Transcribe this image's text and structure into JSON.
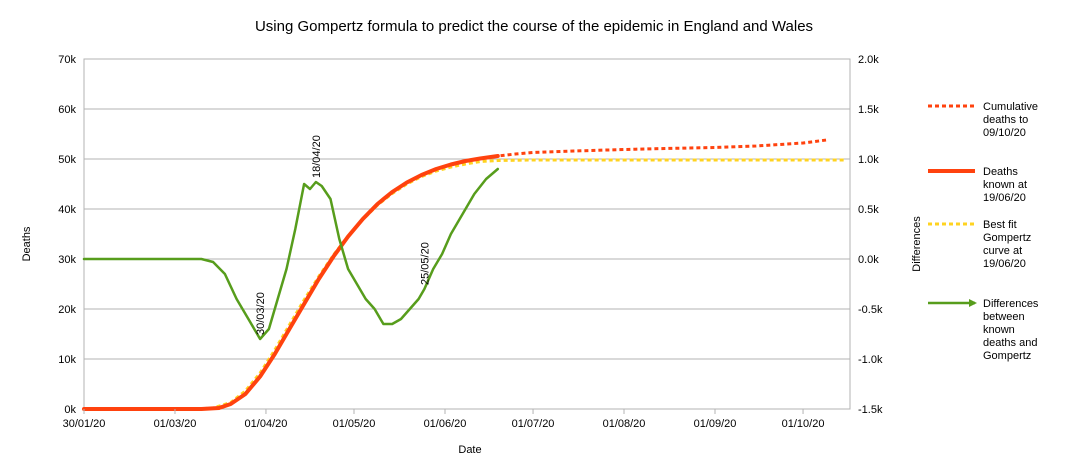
{
  "chart_data": {
    "type": "line",
    "title": "Using Gompertz formula to predict the course of the epidemic in England and Wales",
    "xlabel": "Date",
    "ylabel": "Deaths",
    "y2label": "Differences",
    "x_ticks": [
      "30/01/20",
      "01/03/20",
      "01/04/20",
      "01/05/20",
      "01/06/20",
      "01/07/20",
      "01/08/20",
      "01/09/20",
      "01/10/20"
    ],
    "x_range": [
      "2020-01-30",
      "2020-10-17"
    ],
    "ylim": [
      0,
      70000
    ],
    "y_ticks": [
      "0k",
      "10k",
      "20k",
      "30k",
      "40k",
      "50k",
      "60k",
      "70k"
    ],
    "y2lim": [
      -1500,
      2000
    ],
    "y2_ticks": [
      "-1.5k",
      "-1.0k",
      "-0.5k",
      "0.0k",
      "0.5k",
      "1.0k",
      "1.5k",
      "2.0k"
    ],
    "grid": "horizontal",
    "legend_position": "right",
    "series": [
      {
        "name": "Cumulative deaths to 09/10/20",
        "axis": "left",
        "color": "#ff420e",
        "style": "dotted",
        "x": [
          "2020-01-30",
          "2020-03-10",
          "2020-03-16",
          "2020-03-20",
          "2020-03-25",
          "2020-03-30",
          "2020-04-04",
          "2020-04-09",
          "2020-04-14",
          "2020-04-19",
          "2020-04-24",
          "2020-04-29",
          "2020-05-04",
          "2020-05-09",
          "2020-05-14",
          "2020-05-19",
          "2020-05-24",
          "2020-05-29",
          "2020-06-03",
          "2020-06-08",
          "2020-06-13",
          "2020-06-19",
          "2020-06-25",
          "2020-07-01",
          "2020-07-15",
          "2020-08-01",
          "2020-08-15",
          "2020-09-01",
          "2020-09-15",
          "2020-10-01",
          "2020-10-09"
        ],
        "y": [
          0,
          0,
          200,
          1000,
          3000,
          6500,
          11000,
          16000,
          21000,
          26000,
          30500,
          34500,
          38000,
          41000,
          43400,
          45300,
          46800,
          48000,
          48900,
          49600,
          50100,
          50600,
          51000,
          51300,
          51600,
          51900,
          52100,
          52300,
          52600,
          53200,
          53800
        ]
      },
      {
        "name": "Deaths known at 19/06/20",
        "axis": "left",
        "color": "#ff420e",
        "style": "solid",
        "x": [
          "2020-01-30",
          "2020-03-10",
          "2020-03-16",
          "2020-03-20",
          "2020-03-25",
          "2020-03-30",
          "2020-04-04",
          "2020-04-09",
          "2020-04-14",
          "2020-04-19",
          "2020-04-24",
          "2020-04-29",
          "2020-05-04",
          "2020-05-09",
          "2020-05-14",
          "2020-05-19",
          "2020-05-24",
          "2020-05-29",
          "2020-06-03",
          "2020-06-08",
          "2020-06-13",
          "2020-06-19"
        ],
        "y": [
          0,
          0,
          200,
          1000,
          3000,
          6500,
          11000,
          16000,
          21000,
          26000,
          30500,
          34500,
          38000,
          41000,
          43400,
          45300,
          46800,
          48000,
          48900,
          49600,
          50100,
          50600
        ]
      },
      {
        "name": "Best fit Gompertz curve at 19/06/20",
        "axis": "left",
        "color": "#ffd320",
        "style": "dotted",
        "x": [
          "2020-01-30",
          "2020-03-08",
          "2020-03-14",
          "2020-03-20",
          "2020-03-25",
          "2020-03-30",
          "2020-04-04",
          "2020-04-09",
          "2020-04-14",
          "2020-04-19",
          "2020-04-24",
          "2020-04-29",
          "2020-05-04",
          "2020-05-09",
          "2020-05-14",
          "2020-05-19",
          "2020-05-24",
          "2020-05-29",
          "2020-06-03",
          "2020-06-08",
          "2020-06-13",
          "2020-06-19",
          "2020-07-01",
          "2020-08-01",
          "2020-09-01",
          "2020-10-01",
          "2020-10-15"
        ],
        "y": [
          0,
          0,
          200,
          1300,
          3600,
          7200,
          11800,
          16800,
          21800,
          26500,
          30800,
          34600,
          37900,
          40800,
          43100,
          45000,
          46500,
          47600,
          48400,
          49000,
          49500,
          49700,
          49800,
          49800,
          49800,
          49800,
          49800
        ]
      },
      {
        "name": "Differences between known deaths and Gompertz",
        "axis": "right",
        "color": "#579d1c",
        "style": "solid",
        "x": [
          "2020-01-30",
          "2020-03-10",
          "2020-03-14",
          "2020-03-18",
          "2020-03-22",
          "2020-03-26",
          "2020-03-30",
          "2020-04-02",
          "2020-04-05",
          "2020-04-08",
          "2020-04-11",
          "2020-04-14",
          "2020-04-16",
          "2020-04-18",
          "2020-04-20",
          "2020-04-23",
          "2020-04-26",
          "2020-04-29",
          "2020-05-02",
          "2020-05-05",
          "2020-05-08",
          "2020-05-11",
          "2020-05-14",
          "2020-05-17",
          "2020-05-20",
          "2020-05-23",
          "2020-05-25",
          "2020-05-28",
          "2020-05-31",
          "2020-06-03",
          "2020-06-07",
          "2020-06-11",
          "2020-06-15",
          "2020-06-19"
        ],
        "y": [
          0,
          0,
          -30,
          -150,
          -400,
          -600,
          -800,
          -700,
          -400,
          -100,
          300,
          750,
          700,
          770,
          730,
          600,
          200,
          -100,
          -250,
          -400,
          -500,
          -650,
          -650,
          -600,
          -500,
          -400,
          -300,
          -100,
          50,
          250,
          450,
          650,
          800,
          900
        ]
      }
    ],
    "annotations": [
      "30/03/20",
      "18/04/20",
      "25/05/20"
    ]
  }
}
